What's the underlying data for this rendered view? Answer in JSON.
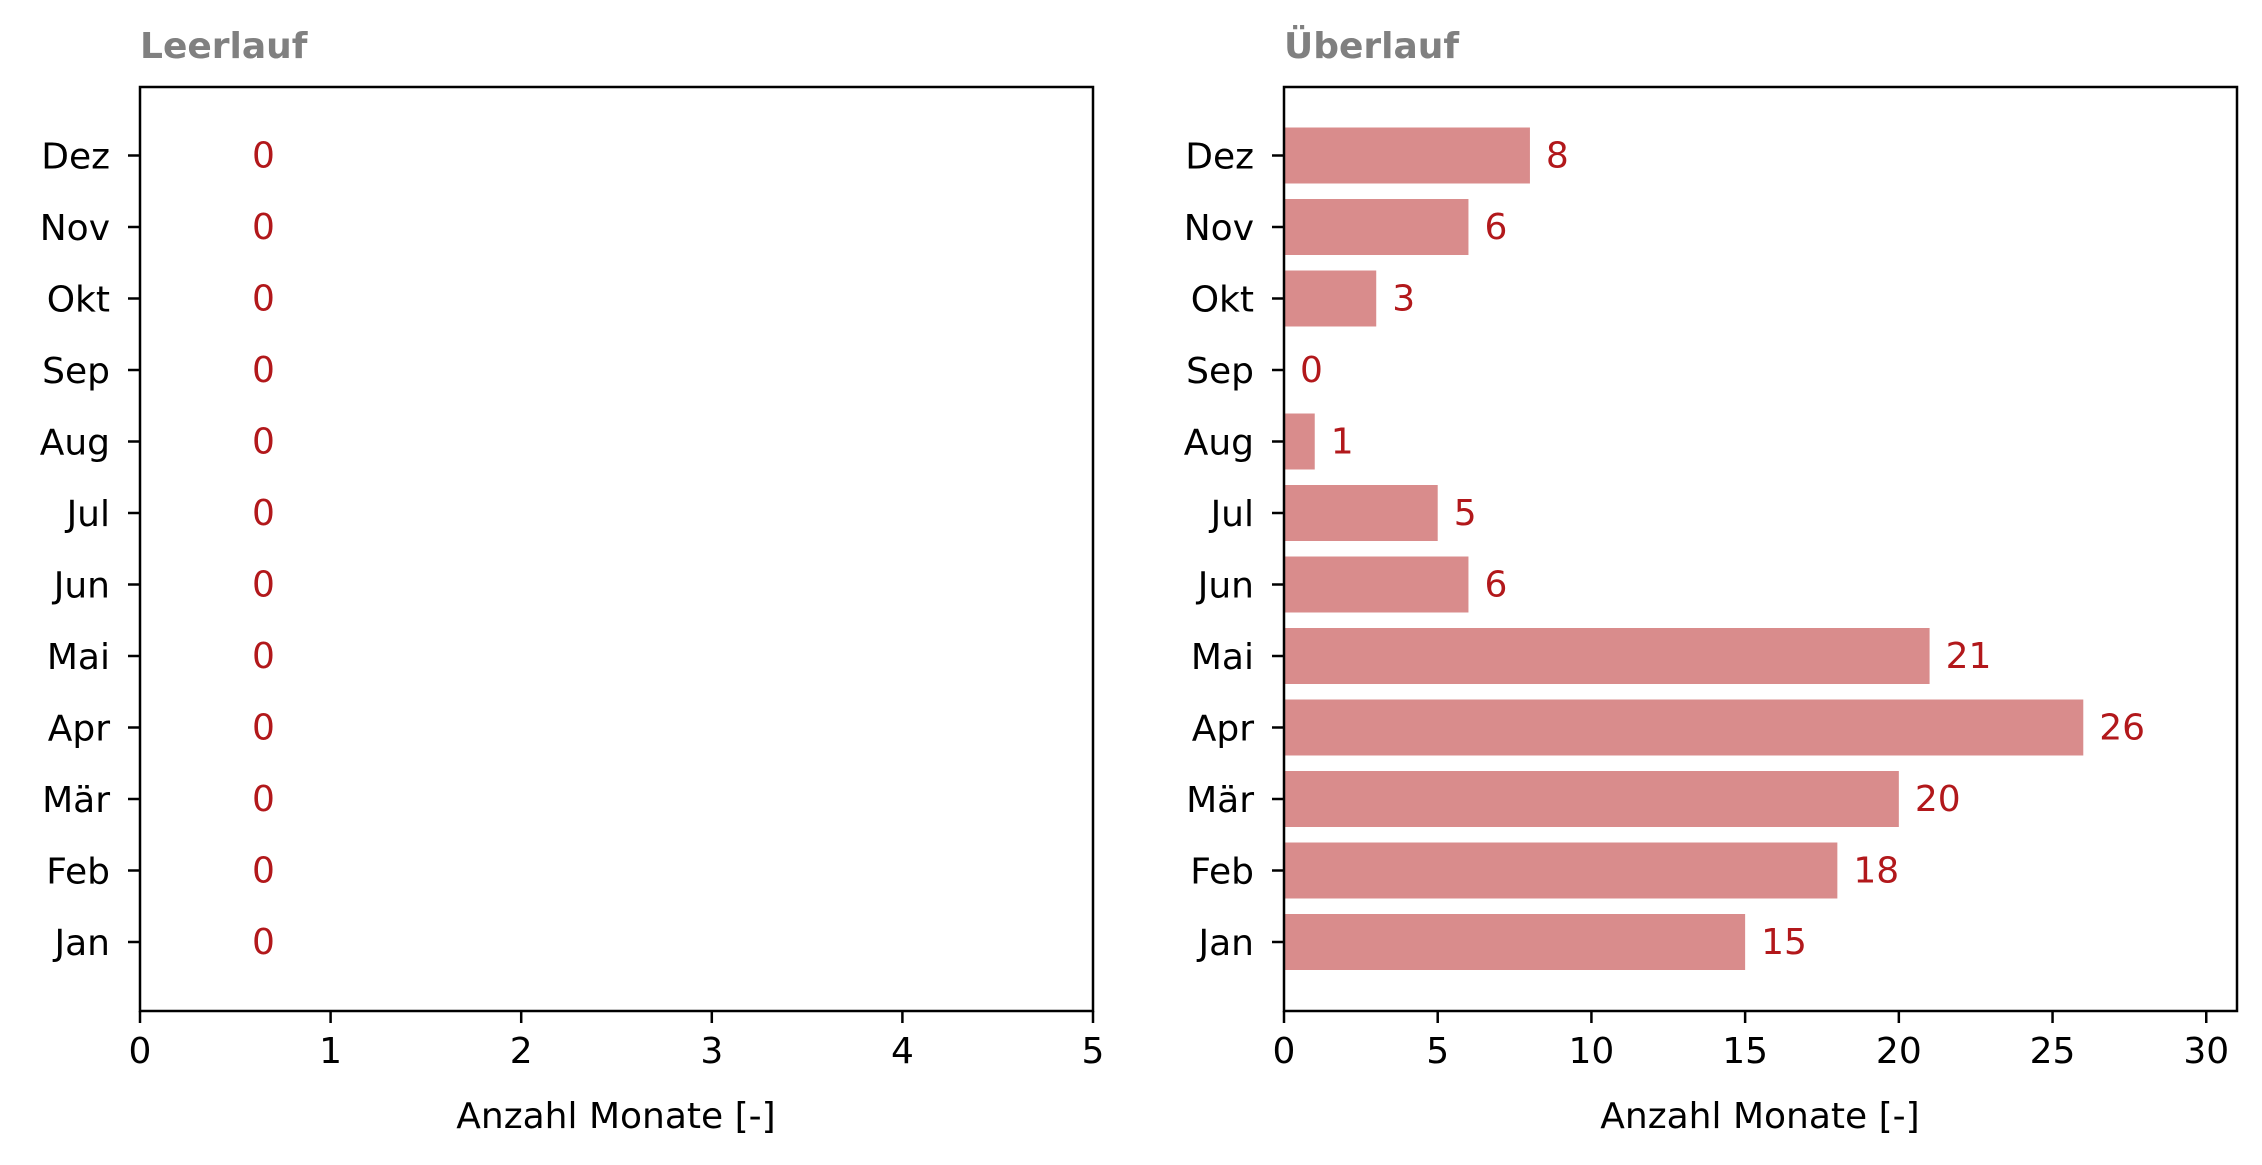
{
  "chart_data": [
    {
      "type": "bar",
      "orientation": "horizontal",
      "title": "Leerlauf",
      "xlabel": "Anzahl Monate [-]",
      "ylabel": "",
      "categories": [
        "Jan",
        "Feb",
        "Mär",
        "Apr",
        "Mai",
        "Jun",
        "Jul",
        "Aug",
        "Sep",
        "Okt",
        "Nov",
        "Dez"
      ],
      "values": [
        0,
        0,
        0,
        0,
        0,
        0,
        0,
        0,
        0,
        0,
        0,
        0
      ],
      "data_labels": [
        "0",
        "0",
        "0",
        "0",
        "0",
        "0",
        "0",
        "0",
        "0",
        "0",
        "0",
        "0"
      ],
      "xlim": [
        0,
        5
      ],
      "xticks": [
        "0",
        "1",
        "2",
        "3",
        "4",
        "5"
      ],
      "grid": false,
      "bar_color": "#d98c8c",
      "label_color": "#b2181b"
    },
    {
      "type": "bar",
      "orientation": "horizontal",
      "title": "Überlauf",
      "xlabel": "Anzahl Monate [-]",
      "ylabel": "",
      "categories": [
        "Jan",
        "Feb",
        "Mär",
        "Apr",
        "Mai",
        "Jun",
        "Jul",
        "Aug",
        "Sep",
        "Okt",
        "Nov",
        "Dez"
      ],
      "values": [
        15,
        18,
        20,
        26,
        21,
        6,
        5,
        1,
        0,
        3,
        6,
        8
      ],
      "data_labels": [
        "15",
        "18",
        "20",
        "26",
        "21",
        "6",
        "5",
        "1",
        "0",
        "3",
        "6",
        "8"
      ],
      "xlim": [
        0,
        31
      ],
      "xticks": [
        "0",
        "5",
        "10",
        "15",
        "20",
        "25",
        "30"
      ],
      "grid": false,
      "bar_color": "#d98c8c",
      "label_color": "#b2181b"
    }
  ],
  "title_color": "#808080"
}
